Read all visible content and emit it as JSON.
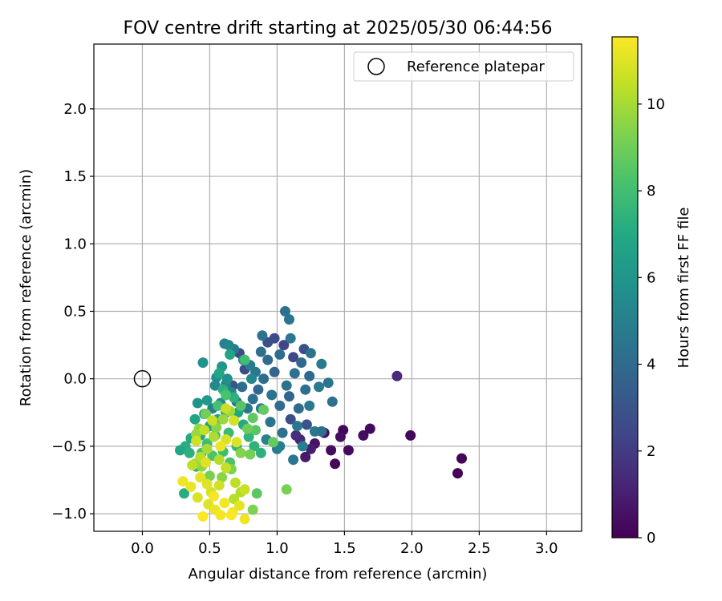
{
  "chart_data": {
    "type": "scatter",
    "title": "FOV centre drift starting at 2025/05/30 06:44:56",
    "xlabel": "Angular distance from reference (arcmin)",
    "ylabel": "Rotation from reference (arcmin)",
    "xlim": [
      -0.36,
      3.26
    ],
    "ylim": [
      -1.13,
      2.48
    ],
    "xticks": [
      0.0,
      0.5,
      1.0,
      1.5,
      2.0,
      2.5,
      3.0
    ],
    "xtick_labels": [
      "0.0",
      "0.5",
      "1.0",
      "1.5",
      "2.0",
      "2.5",
      "3.0"
    ],
    "yticks": [
      -1.0,
      -0.5,
      0.0,
      0.5,
      1.0,
      1.5,
      2.0
    ],
    "ytick_labels": [
      "−1.0",
      "−0.5",
      "0.0",
      "0.5",
      "1.0",
      "1.5",
      "2.0"
    ],
    "grid": true,
    "colormap": "viridis",
    "colorbar": {
      "label": "Hours from first FF file",
      "min": 0,
      "max": 11.55,
      "ticks": [
        0,
        2,
        4,
        6,
        8,
        10
      ],
      "tick_labels": [
        "0",
        "2",
        "4",
        "6",
        "8",
        "10"
      ]
    },
    "legend": {
      "placement": "upper right",
      "entries": [
        {
          "label": "Reference platepar",
          "marker": "open-circle",
          "color": "#000000"
        }
      ]
    },
    "reference_point": {
      "x": 0.0,
      "y": 0.0
    },
    "points": [
      [
        1.89,
        0.02,
        1.4
      ],
      [
        1.99,
        -0.42,
        0.2
      ],
      [
        2.37,
        -0.59,
        0.1
      ],
      [
        2.34,
        -0.7,
        0.1
      ],
      [
        1.69,
        -0.37,
        0.3
      ],
      [
        1.64,
        -0.42,
        0.4
      ],
      [
        1.53,
        -0.53,
        0.3
      ],
      [
        1.49,
        -0.38,
        0.2
      ],
      [
        1.47,
        -0.43,
        0.4
      ],
      [
        1.43,
        -0.63,
        0.2
      ],
      [
        1.4,
        -0.53,
        0.3
      ],
      [
        1.35,
        -0.4,
        0.5
      ],
      [
        1.28,
        -0.48,
        0.6
      ],
      [
        1.21,
        -0.58,
        0.8
      ],
      [
        1.25,
        -0.52,
        1.0
      ],
      [
        1.17,
        -0.45,
        1.2
      ],
      [
        1.14,
        -0.42,
        1.5
      ],
      [
        1.05,
        0.25,
        2.3
      ],
      [
        0.98,
        0.3,
        2.6
      ],
      [
        0.93,
        0.27,
        2.8
      ],
      [
        1.12,
        0.16,
        2.5
      ],
      [
        1.2,
        0.22,
        2.8
      ],
      [
        1.1,
        -0.3,
        2.7
      ],
      [
        1.22,
        -0.34,
        2.9
      ],
      [
        0.72,
        0.19,
        2.5
      ],
      [
        0.76,
        0.07,
        2.7
      ],
      [
        0.67,
        -0.05,
        3.0
      ],
      [
        1.06,
        0.5,
        4.3
      ],
      [
        1.09,
        0.44,
        4.5
      ],
      [
        0.89,
        0.32,
        4.3
      ],
      [
        1.1,
        0.3,
        4.6
      ],
      [
        1.25,
        0.19,
        4.4
      ],
      [
        1.33,
        0.11,
        4.7
      ],
      [
        1.38,
        -0.03,
        4.5
      ],
      [
        1.41,
        -0.17,
        4.3
      ],
      [
        1.31,
        -0.06,
        4.8
      ],
      [
        1.28,
        -0.39,
        4.6
      ],
      [
        1.33,
        -0.39,
        4.3
      ],
      [
        1.12,
        -0.6,
        4.5
      ],
      [
        1.18,
        0.12,
        3.9
      ],
      [
        1.02,
        0.18,
        4.1
      ],
      [
        0.98,
        0.05,
        3.8
      ],
      [
        0.93,
        0.14,
        4.0
      ],
      [
        0.9,
        0.0,
        4.2
      ],
      [
        0.86,
        -0.08,
        3.9
      ],
      [
        0.96,
        -0.12,
        4.4
      ],
      [
        1.02,
        -0.2,
        4.1
      ],
      [
        1.09,
        -0.13,
        3.8
      ],
      [
        1.16,
        -0.22,
        4.0
      ],
      [
        1.21,
        -0.08,
        4.2
      ],
      [
        1.24,
        0.02,
        3.9
      ],
      [
        1.13,
        0.04,
        4.3
      ],
      [
        1.07,
        -0.05,
        4.4
      ],
      [
        0.82,
        -0.15,
        4.3
      ],
      [
        0.78,
        -0.22,
        4.5
      ],
      [
        0.84,
        0.05,
        4.6
      ],
      [
        0.8,
        0.1,
        4.8
      ],
      [
        0.88,
        0.2,
        4.2
      ],
      [
        0.95,
        -0.32,
        4.4
      ],
      [
        1.04,
        -0.4,
        4.2
      ],
      [
        1.15,
        -0.35,
        4.6
      ],
      [
        1.24,
        -0.2,
        4.7
      ],
      [
        1.19,
        -0.5,
        4.9
      ],
      [
        1.0,
        -0.52,
        4.8
      ],
      [
        0.7,
        -0.17,
        4.3
      ],
      [
        0.74,
        -0.06,
        4.1
      ],
      [
        0.68,
        0.22,
        4.7
      ],
      [
        0.61,
        0.26,
        5.0
      ],
      [
        0.64,
        0.25,
        5.2
      ],
      [
        0.75,
        0.14,
        5.1
      ],
      [
        0.81,
        0.0,
        5.3
      ],
      [
        0.88,
        -0.22,
        5.0
      ],
      [
        0.92,
        -0.45,
        5.1
      ],
      [
        1.02,
        -0.5,
        5.0
      ],
      [
        0.62,
        -0.04,
        5.2
      ],
      [
        0.54,
        -0.05,
        5.4
      ],
      [
        0.52,
        -0.22,
        5.0
      ],
      [
        0.58,
        -0.18,
        5.6
      ],
      [
        0.66,
        -0.1,
        5.4
      ],
      [
        0.55,
        0.01,
        5.7
      ],
      [
        0.45,
        0.12,
        5.8
      ],
      [
        0.59,
        0.09,
        6.0
      ],
      [
        0.63,
        0.0,
        5.8
      ],
      [
        0.48,
        -0.16,
        6.2
      ],
      [
        0.41,
        -0.18,
        6.0
      ],
      [
        0.46,
        -0.26,
        6.3
      ],
      [
        0.56,
        -0.3,
        6.5
      ],
      [
        0.62,
        -0.25,
        6.4
      ],
      [
        0.5,
        -0.35,
        6.6
      ],
      [
        0.39,
        -0.3,
        6.8
      ],
      [
        0.43,
        -0.42,
        6.9
      ],
      [
        0.36,
        -0.44,
        7.0
      ],
      [
        0.32,
        -0.5,
        7.2
      ],
      [
        0.28,
        -0.53,
        6.9
      ],
      [
        0.35,
        -0.55,
        7.3
      ],
      [
        0.4,
        -0.65,
        7.2
      ],
      [
        0.31,
        -0.85,
        7.1
      ],
      [
        0.65,
        0.18,
        6.7
      ],
      [
        0.57,
        0.04,
        6.9
      ],
      [
        0.6,
        -0.08,
        7.4
      ],
      [
        0.68,
        -0.14,
        7.3
      ],
      [
        0.71,
        -0.25,
        6.8
      ],
      [
        0.75,
        -0.34,
        7.0
      ],
      [
        0.79,
        -0.43,
        7.5
      ],
      [
        0.83,
        -0.5,
        7.4
      ],
      [
        0.88,
        -0.55,
        7.3
      ],
      [
        0.7,
        -0.5,
        7.6
      ],
      [
        0.64,
        -0.4,
        7.8
      ],
      [
        0.54,
        -0.42,
        7.7
      ],
      [
        0.48,
        -0.48,
        7.9
      ],
      [
        0.44,
        -0.55,
        8.0
      ],
      [
        0.52,
        -0.57,
        8.2
      ],
      [
        0.6,
        -0.54,
        8.0
      ],
      [
        0.65,
        -0.62,
        8.3
      ],
      [
        0.56,
        -0.2,
        8.1
      ],
      [
        0.62,
        -0.12,
        8.2
      ],
      [
        0.73,
        -0.2,
        8.5
      ],
      [
        0.76,
        0.14,
        8.0
      ],
      [
        0.84,
        -0.38,
        8.5
      ],
      [
        0.9,
        -0.23,
        8.8
      ],
      [
        0.97,
        -0.47,
        8.8
      ],
      [
        0.82,
        -0.29,
        8.7
      ],
      [
        0.78,
        -0.37,
        9.0
      ],
      [
        1.07,
        -0.82,
        9.2
      ],
      [
        0.85,
        -0.85,
        8.6
      ],
      [
        0.82,
        -0.97,
        9.3
      ],
      [
        0.8,
        -0.56,
        9.1
      ],
      [
        0.73,
        -0.55,
        9.4
      ],
      [
        0.66,
        -0.67,
        9.3
      ],
      [
        0.59,
        -0.73,
        9.5
      ],
      [
        0.5,
        -0.72,
        9.2
      ],
      [
        0.44,
        -0.65,
        9.6
      ],
      [
        0.39,
        -0.63,
        9.8
      ],
      [
        0.47,
        -0.26,
        9.1
      ],
      [
        0.55,
        -0.36,
        9.5
      ],
      [
        0.6,
        -0.3,
        9.8
      ],
      [
        0.65,
        -0.24,
        9.9
      ],
      [
        0.42,
        -0.37,
        9.6
      ],
      [
        0.4,
        -0.41,
        9.8
      ],
      [
        0.53,
        -0.43,
        10.1
      ],
      [
        0.48,
        -0.52,
        10.0
      ],
      [
        0.43,
        -0.58,
        10.3
      ],
      [
        0.37,
        -0.64,
        10.4
      ],
      [
        0.57,
        -0.6,
        10.2
      ],
      [
        0.62,
        -0.66,
        10.5
      ],
      [
        0.69,
        -0.77,
        10.4
      ],
      [
        0.73,
        -0.84,
        10.2
      ],
      [
        0.76,
        -0.82,
        10.6
      ],
      [
        0.68,
        -0.89,
        10.3
      ],
      [
        0.57,
        -0.79,
        10.7
      ],
      [
        0.51,
        -0.84,
        10.8
      ],
      [
        0.48,
        -0.78,
        11.0
      ],
      [
        0.43,
        -0.73,
        11.1
      ],
      [
        0.36,
        -0.8,
        11.2
      ],
      [
        0.3,
        -0.76,
        11.3
      ],
      [
        0.41,
        -0.88,
        10.9
      ],
      [
        0.49,
        -0.93,
        11.0
      ],
      [
        0.54,
        -0.97,
        11.2
      ],
      [
        0.61,
        -0.92,
        11.4
      ],
      [
        0.67,
        -0.99,
        11.3
      ],
      [
        0.72,
        -0.94,
        11.1
      ],
      [
        0.66,
        -1.01,
        11.5
      ],
      [
        0.58,
        -1.01,
        11.4
      ],
      [
        0.53,
        -0.87,
        11.4
      ],
      [
        0.45,
        -1.02,
        11.5
      ],
      [
        0.76,
        -1.04,
        11.3
      ],
      [
        0.62,
        -0.45,
        10.9
      ],
      [
        0.7,
        -0.47,
        11.0
      ],
      [
        0.58,
        -0.5,
        11.2
      ],
      [
        0.47,
        -0.62,
        11.0
      ],
      [
        0.4,
        -0.46,
        10.7
      ],
      [
        0.62,
        -0.22,
        10.6
      ],
      [
        0.68,
        -0.31,
        10.8
      ],
      [
        0.46,
        -0.38,
        10.5
      ],
      [
        0.52,
        -0.31,
        10.6
      ]
    ]
  }
}
